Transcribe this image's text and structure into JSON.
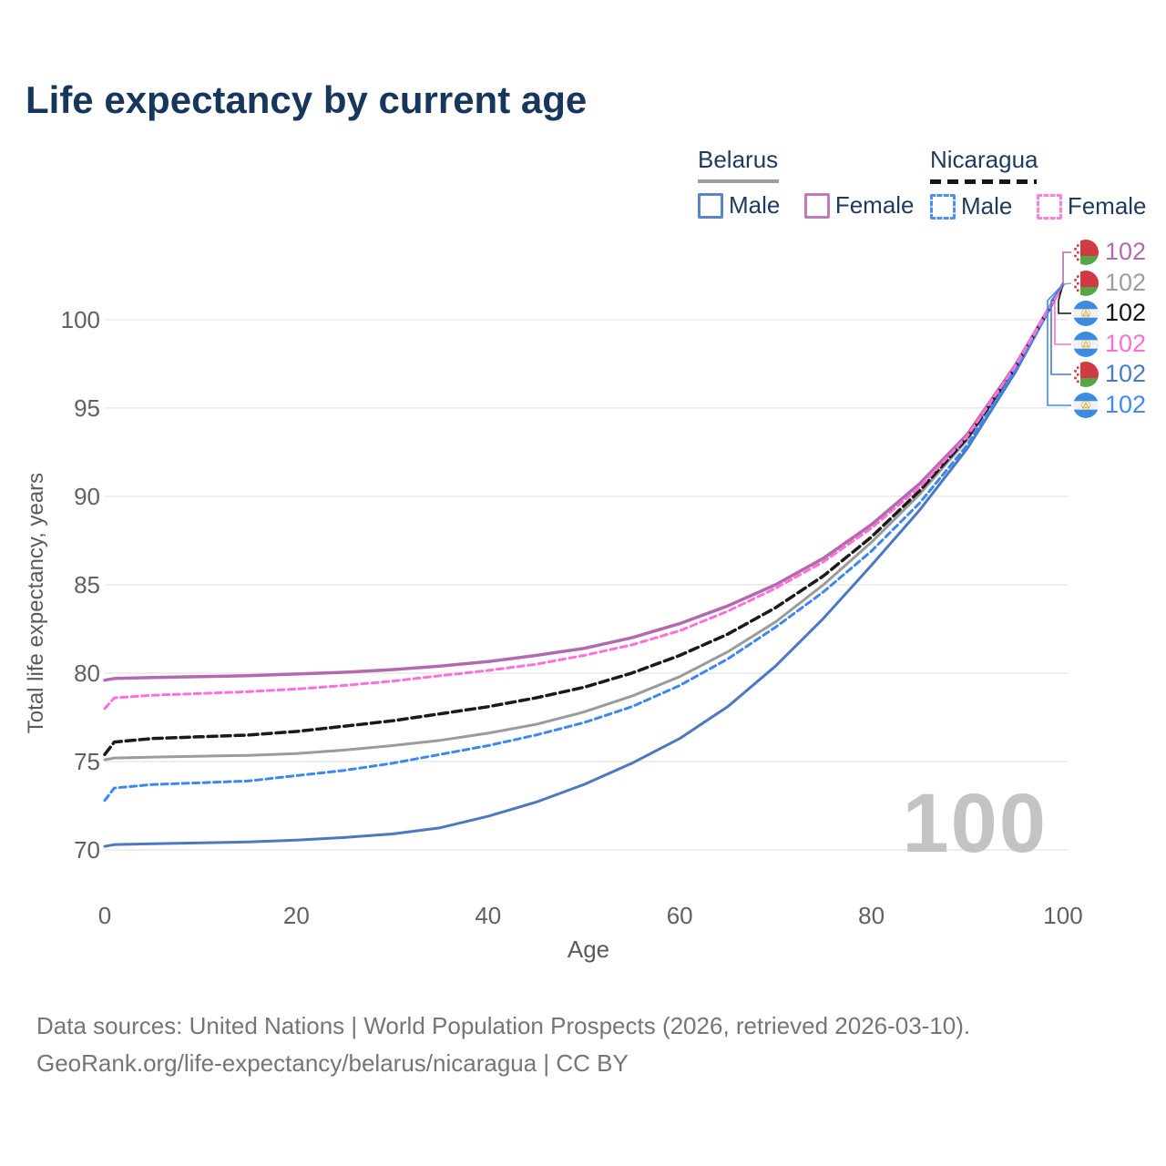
{
  "title": "Life expectancy by current age",
  "watermark": "100",
  "axes": {
    "y_title": "Total life expectancy, years",
    "x_title": "Age",
    "y_ticks": [
      70,
      75,
      80,
      85,
      90,
      95,
      100
    ],
    "x_ticks": [
      0,
      20,
      40,
      60,
      80,
      100
    ]
  },
  "legend": {
    "groups": [
      {
        "label": "Belarus",
        "rule_style": "solid",
        "rule_color": "#9e9e9e",
        "items": [
          {
            "label": "Male",
            "color": "#5b84c4",
            "dashed": false
          },
          {
            "label": "Female",
            "color": "#bc7cb5",
            "dashed": false
          }
        ]
      },
      {
        "label": "Nicaragua",
        "rule_style": "dashed",
        "rule_color": "#161616",
        "items": [
          {
            "label": "Male",
            "color": "#4a90f0",
            "dashed": true
          },
          {
            "label": "Female",
            "color": "#ff80dd",
            "dashed": true
          }
        ]
      }
    ]
  },
  "end_labels": [
    {
      "flag": "belarus",
      "series": "Belarus Female",
      "value": "102",
      "color": "#b16dab"
    },
    {
      "flag": "belarus",
      "series": "Belarus Total",
      "value": "102",
      "color": "#9e9e9e"
    },
    {
      "flag": "nicaragua",
      "series": "Nicaragua Total",
      "value": "102",
      "color": "#141414"
    },
    {
      "flag": "nicaragua",
      "series": "Nicaragua Female",
      "value": "102",
      "color": "#ff70d2"
    },
    {
      "flag": "belarus",
      "series": "Belarus Male",
      "value": "102",
      "color": "#4a7dc0"
    },
    {
      "flag": "nicaragua",
      "series": "Nicaragua Male",
      "value": "102",
      "color": "#4189f5"
    }
  ],
  "footer": {
    "line1": "Data sources: United Nations | World Population Prospects (2026, retrieved 2026-03-10).",
    "line2": "GeoRank.org/life-expectancy/belarus/nicaragua | CC BY"
  },
  "chart_data": {
    "type": "line",
    "title": "Life expectancy by current age",
    "xlabel": "Age",
    "ylabel": "Total life expectancy, years",
    "xlim": [
      0,
      100
    ],
    "ylim": [
      70,
      102
    ],
    "grid": true,
    "legend_position": "top-right",
    "x": [
      0,
      1,
      5,
      10,
      15,
      20,
      25,
      30,
      35,
      40,
      45,
      50,
      55,
      60,
      65,
      70,
      75,
      80,
      85,
      90,
      95,
      100
    ],
    "series": [
      {
        "name": "Belarus Total",
        "country": "Belarus",
        "sex": "total",
        "style": "solid",
        "color": "#9b9b9b",
        "width": 3,
        "values": [
          75.1,
          75.2,
          75.25,
          75.3,
          75.35,
          75.45,
          75.65,
          75.9,
          76.2,
          76.6,
          77.1,
          77.8,
          78.7,
          79.8,
          81.2,
          82.9,
          85.0,
          87.4,
          90.1,
          93.2,
          97.2,
          102
        ]
      },
      {
        "name": "Belarus Male",
        "country": "Belarus",
        "sex": "male",
        "style": "solid",
        "color": "#4a79c2",
        "width": 3,
        "values": [
          70.2,
          70.3,
          70.35,
          70.4,
          70.45,
          70.55,
          70.7,
          70.9,
          71.25,
          71.9,
          72.7,
          73.7,
          74.9,
          76.3,
          78.1,
          80.4,
          83.1,
          86.1,
          89.2,
          92.7,
          97.0,
          102
        ]
      },
      {
        "name": "Belarus Female",
        "country": "Belarus",
        "sex": "female",
        "style": "solid",
        "color": "#b369ad",
        "width": 3.5,
        "values": [
          79.6,
          79.7,
          79.75,
          79.8,
          79.85,
          79.95,
          80.05,
          80.2,
          80.4,
          80.65,
          81.0,
          81.4,
          82.0,
          82.8,
          83.8,
          85.0,
          86.5,
          88.4,
          90.7,
          93.5,
          97.4,
          102
        ]
      },
      {
        "name": "Nicaragua Total",
        "country": "Nicaragua",
        "sex": "total",
        "style": "dashed",
        "color": "#1a1a1a",
        "width": 3.5,
        "values": [
          75.4,
          76.1,
          76.3,
          76.4,
          76.5,
          76.7,
          77.0,
          77.3,
          77.7,
          78.1,
          78.6,
          79.2,
          80.0,
          81.0,
          82.2,
          83.7,
          85.5,
          87.7,
          90.3,
          93.3,
          97.25,
          102
        ]
      },
      {
        "name": "Nicaragua Male",
        "country": "Nicaragua",
        "sex": "male",
        "style": "dashed",
        "color": "#3d87f0",
        "width": 3,
        "values": [
          72.8,
          73.5,
          73.7,
          73.8,
          73.9,
          74.2,
          74.5,
          74.9,
          75.4,
          75.9,
          76.5,
          77.2,
          78.1,
          79.3,
          80.8,
          82.6,
          84.6,
          86.9,
          89.6,
          92.9,
          97.1,
          102
        ]
      },
      {
        "name": "Nicaragua Female",
        "country": "Nicaragua",
        "sex": "female",
        "style": "dashed",
        "color": "#ff71d8",
        "width": 3,
        "values": [
          78.0,
          78.6,
          78.75,
          78.85,
          78.95,
          79.1,
          79.3,
          79.55,
          79.85,
          80.15,
          80.5,
          81.0,
          81.6,
          82.4,
          83.5,
          84.8,
          86.3,
          88.2,
          90.5,
          93.4,
          97.35,
          102
        ]
      }
    ],
    "end_value_labels": [
      "102",
      "102",
      "102",
      "102",
      "102",
      "102"
    ]
  }
}
